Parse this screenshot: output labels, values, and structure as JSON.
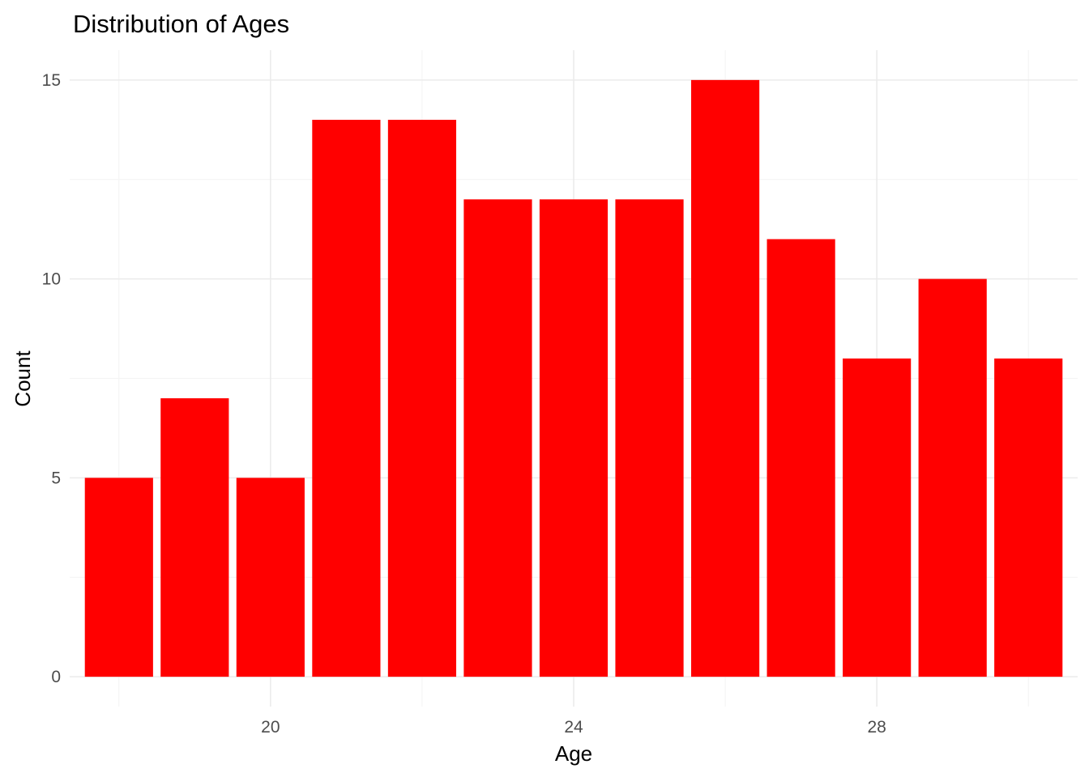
{
  "chart_data": {
    "type": "bar",
    "title": "Distribution of Ages",
    "xlabel": "Age",
    "ylabel": "Count",
    "x": [
      18,
      19,
      20,
      21,
      22,
      23,
      24,
      25,
      26,
      27,
      28,
      29,
      30
    ],
    "values": [
      5,
      7,
      5,
      14,
      14,
      12,
      12,
      12,
      15,
      11,
      8,
      10,
      8
    ],
    "bar_color": "#ff0000",
    "xlim": [
      17.35,
      30.65
    ],
    "ylim": [
      -0.75,
      15.75
    ],
    "x_ticks": [
      20,
      24,
      28
    ],
    "y_ticks": [
      0,
      5,
      10,
      15
    ],
    "grid": true,
    "legend": "none"
  }
}
